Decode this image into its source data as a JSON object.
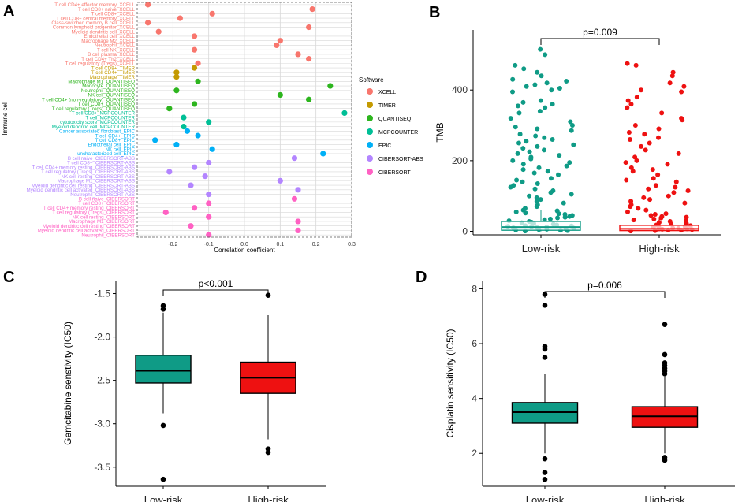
{
  "panels": {
    "A": "A",
    "B": "B",
    "C": "C",
    "D": "D"
  },
  "colors": {
    "teal": "#0f9b86",
    "red": "#ee1111",
    "grid": "#cccccc"
  },
  "chart_data": [
    {
      "panel": "A",
      "type": "scatter",
      "xlabel": "Correlation coefficient",
      "ylabel": "Immune cell",
      "xlim": [
        -0.3,
        0.3
      ],
      "xticks": [
        "-0.2",
        "-0.1",
        "0.0",
        "0.1",
        "0.2",
        "0.3"
      ],
      "legend_title": "Software",
      "legend": [
        {
          "name": "XCELL",
          "color": "#f8766d"
        },
        {
          "name": "TIMER",
          "color": "#c49a00"
        },
        {
          "name": "QUANTISEQ",
          "color": "#2db51e"
        },
        {
          "name": "MCPCOUNTER",
          "color": "#00bf96"
        },
        {
          "name": "EPIC",
          "color": "#00b0f6"
        },
        {
          "name": "CIBERSORT-ABS",
          "color": "#b385ff"
        },
        {
          "name": "CIBERSORT",
          "color": "#ff61c3"
        }
      ],
      "points": [
        {
          "label": "T cell CD4+ effector memory_XCELL",
          "software": "XCELL",
          "value": -0.27
        },
        {
          "label": "T cell CD8+ naive_XCELL",
          "software": "XCELL",
          "value": 0.19
        },
        {
          "label": "T cell CD8+_XCELL",
          "software": "XCELL",
          "value": -0.09
        },
        {
          "label": "T cell CD8+ central memory_XCELL",
          "software": "XCELL",
          "value": -0.18
        },
        {
          "label": "Class-switched memory B cell_XCELL",
          "software": "XCELL",
          "value": -0.27
        },
        {
          "label": "Common lymphoid progenitor_XCELL",
          "software": "XCELL",
          "value": 0.18
        },
        {
          "label": "Myeloid dendritic cell_XCELL",
          "software": "XCELL",
          "value": -0.24
        },
        {
          "label": "Endothelial cell_XCELL",
          "software": "XCELL",
          "value": -0.14
        },
        {
          "label": "Macrophage M2_XCELL",
          "software": "XCELL",
          "value": 0.1
        },
        {
          "label": "Neutrophil_XCELL",
          "software": "XCELL",
          "value": 0.09
        },
        {
          "label": "T cell NK_XCELL",
          "software": "XCELL",
          "value": -0.14
        },
        {
          "label": "B cell plasma_XCELL",
          "software": "XCELL",
          "value": 0.15
        },
        {
          "label": "T cell CD4+ Th2_XCELL",
          "software": "XCELL",
          "value": 0.18
        },
        {
          "label": "T cell regulatory (Tregs)_XCELL",
          "software": "XCELL",
          "value": -0.13
        },
        {
          "label": "T cell CD8+_TIMER",
          "software": "TIMER",
          "value": -0.14
        },
        {
          "label": "T cell CD4+_TIMER",
          "software": "TIMER",
          "value": -0.19
        },
        {
          "label": "Macrophage_TIMER",
          "software": "TIMER",
          "value": -0.19
        },
        {
          "label": "Macrophage M1_QUANTISEQ",
          "software": "QUANTISEQ",
          "value": -0.13
        },
        {
          "label": "Monocyte_QUANTISEQ",
          "software": "QUANTISEQ",
          "value": 0.24
        },
        {
          "label": "Neutrophil_QUANTISEQ",
          "software": "QUANTISEQ",
          "value": -0.19
        },
        {
          "label": "NK cell_QUANTISEQ",
          "software": "QUANTISEQ",
          "value": 0.1
        },
        {
          "label": "T cell CD4+ (non-regulatory)_QUANTISEQ",
          "software": "QUANTISEQ",
          "value": 0.18
        },
        {
          "label": "T cell CD8+_QUANTISEQ",
          "software": "QUANTISEQ",
          "value": -0.14
        },
        {
          "label": "T cell regulatory (Tregs)_QUANTISEQ",
          "software": "QUANTISEQ",
          "value": -0.21
        },
        {
          "label": "T cell CD8+_MCPCOUNTER",
          "software": "MCPCOUNTER",
          "value": 0.28
        },
        {
          "label": "T cell_MCPCOUNTER",
          "software": "MCPCOUNTER",
          "value": -0.17
        },
        {
          "label": "cytotoxicity score_MCPCOUNTER",
          "software": "MCPCOUNTER",
          "value": -0.1
        },
        {
          "label": "Myeloid dendritic cell_MCPCOUNTER",
          "software": "MCPCOUNTER",
          "value": -0.17
        },
        {
          "label": "Cancer associated fibroblast_EPIC",
          "software": "EPIC",
          "value": -0.16
        },
        {
          "label": "T cell CD4+_EPIC",
          "software": "EPIC",
          "value": -0.13
        },
        {
          "label": "T cell CD8+_EPIC",
          "software": "EPIC",
          "value": -0.25
        },
        {
          "label": "Endothelial cell_EPIC",
          "software": "EPIC",
          "value": -0.19
        },
        {
          "label": "NK cell_EPIC",
          "software": "EPIC",
          "value": -0.09
        },
        {
          "label": "uncharacterized cell_EPIC",
          "software": "EPIC",
          "value": 0.22
        },
        {
          "label": "B cell naive_CIBERSORT-ABS",
          "software": "CIBERSORT-ABS",
          "value": 0.14
        },
        {
          "label": "T cell CD8+_CIBERSORT-ABS",
          "software": "CIBERSORT-ABS",
          "value": -0.1
        },
        {
          "label": "T cell CD4+ memory resting_CIBERSORT-ABS",
          "software": "CIBERSORT-ABS",
          "value": -0.14
        },
        {
          "label": "T cell regulatory (Tregs)_CIBERSORT-ABS",
          "software": "CIBERSORT-ABS",
          "value": -0.21
        },
        {
          "label": "NK cell resting_CIBERSORT-ABS",
          "software": "CIBERSORT-ABS",
          "value": -0.11
        },
        {
          "label": "Macrophage M1_CIBERSORT-ABS",
          "software": "CIBERSORT-ABS",
          "value": 0.1
        },
        {
          "label": "Myeloid dendritic cell resting_CIBERSORT-ABS",
          "software": "CIBERSORT-ABS",
          "value": -0.15
        },
        {
          "label": "Myeloid dendritic cell activated_CIBERSORT-ABS",
          "software": "CIBERSORT-ABS",
          "value": 0.15
        },
        {
          "label": "Neutrophil_CIBERSORT-ABS",
          "software": "CIBERSORT-ABS",
          "value": -0.1
        },
        {
          "label": "B cell naive_CIBERSORT",
          "software": "CIBERSORT",
          "value": 0.14
        },
        {
          "label": "T cell CD8+_CIBERSORT",
          "software": "CIBERSORT",
          "value": -0.1
        },
        {
          "label": "T cell CD4+ memory resting_CIBERSORT",
          "software": "CIBERSORT",
          "value": -0.14
        },
        {
          "label": "T cell regulatory (Tregs)_CIBERSORT",
          "software": "CIBERSORT",
          "value": -0.22
        },
        {
          "label": "NK cell resting_CIBERSORT",
          "software": "CIBERSORT",
          "value": -0.1
        },
        {
          "label": "Macrophage M1_CIBERSORT",
          "software": "CIBERSORT",
          "value": 0.15
        },
        {
          "label": "Myeloid dendritic cell resting_CIBERSORT",
          "software": "CIBERSORT",
          "value": -0.15
        },
        {
          "label": "Myeloid dendritic cell activated_CIBERSORT",
          "software": "CIBERSORT",
          "value": 0.15
        },
        {
          "label": "Neutrophil_CIBERSORT",
          "software": "CIBERSORT",
          "value": -0.1
        }
      ]
    },
    {
      "panel": "B",
      "type": "box",
      "ylabel": "TMB",
      "ylim": [
        -10,
        570
      ],
      "yticks": [
        0,
        200,
        400
      ],
      "categories": [
        "Low-risk",
        "High-risk"
      ],
      "pvalue": "p=0.009",
      "boxes": [
        {
          "group": "Low-risk",
          "min": 0,
          "q1": 3,
          "median": 12,
          "q3": 28,
          "max": 60,
          "color": "#0f9b86",
          "fill": "#ffffff"
        },
        {
          "group": "High-risk",
          "min": 0,
          "q1": 2,
          "median": 7,
          "q3": 17,
          "max": 40,
          "color": "#ee1111",
          "fill": "#ffffff"
        }
      ],
      "jitter": {
        "Low-risk": [
          515,
          500,
          470,
          460,
          450,
          440,
          430,
          425,
          420,
          415,
          410,
          405,
          400,
          395,
          370,
          365,
          360,
          355,
          350,
          340,
          335,
          320,
          310,
          300,
          295,
          290,
          285,
          275,
          270,
          265,
          260,
          255,
          250,
          245,
          240,
          235,
          230,
          225,
          220,
          215,
          210,
          205,
          200,
          195,
          190,
          185,
          180,
          175,
          170,
          165,
          160,
          150,
          145,
          140,
          135,
          130,
          125,
          120,
          115,
          110,
          105,
          100,
          95,
          90,
          85,
          80,
          75,
          70,
          65,
          60,
          58,
          55,
          52,
          50,
          48,
          45,
          42,
          40,
          38,
          35,
          33,
          30,
          28,
          26,
          24,
          22,
          20,
          18,
          16,
          15,
          14,
          13,
          12,
          11,
          10,
          9,
          8,
          7,
          6,
          5,
          4,
          3,
          2,
          1
        ],
        "High-risk": [
          475,
          470,
          450,
          440,
          420,
          410,
          400,
          395,
          380,
          370,
          360,
          350,
          335,
          320,
          315,
          300,
          290,
          280,
          275,
          265,
          260,
          250,
          240,
          230,
          220,
          210,
          200,
          195,
          190,
          180,
          175,
          170,
          160,
          150,
          145,
          140,
          130,
          125,
          120,
          115,
          110,
          100,
          95,
          90,
          85,
          80,
          75,
          70,
          65,
          60,
          55,
          50,
          48,
          45,
          42,
          40,
          38,
          35,
          32,
          30,
          28,
          25,
          22,
          20,
          18,
          16,
          14,
          12,
          10,
          9,
          8,
          7,
          6,
          5,
          4,
          3,
          2,
          1
        ]
      }
    },
    {
      "panel": "C",
      "type": "box",
      "ylabel": "Gemcitabine senstivity (IC50)",
      "ylim": [
        -3.72,
        -1.35
      ],
      "yticks": [
        -3.5,
        -3.0,
        -2.5,
        -2.0,
        -1.5
      ],
      "yticklabels": [
        "-3.5",
        "-3.0",
        "-2.5",
        "-2.0",
        "-1.5"
      ],
      "categories": [
        "Low-risk",
        "High-risk"
      ],
      "pvalue": "p<0.001",
      "boxes": [
        {
          "group": "Low-risk",
          "min": -2.88,
          "q1": -2.53,
          "median": -2.39,
          "q3": -2.21,
          "max": -1.72,
          "color": "#000000",
          "fill": "#0f9b86"
        },
        {
          "group": "High-risk",
          "min": -3.18,
          "q1": -2.65,
          "median": -2.47,
          "q3": -2.29,
          "max": -1.75,
          "color": "#000000",
          "fill": "#ee1111"
        }
      ],
      "outliers": {
        "Low-risk": [
          -1.64,
          -1.68,
          -3.02,
          -3.64
        ],
        "High-risk": [
          -1.52,
          -3.29,
          -3.33
        ]
      }
    },
    {
      "panel": "D",
      "type": "box",
      "ylabel": "Cisplatin sensitivity (IC50)",
      "ylim": [
        0.8,
        8.3
      ],
      "yticks": [
        2,
        4,
        6,
        8
      ],
      "yticklabels": [
        "2",
        "4",
        "6",
        "8"
      ],
      "categories": [
        "Low-risk",
        "High-risk"
      ],
      "pvalue": "p=0.006",
      "boxes": [
        {
          "group": "Low-risk",
          "min": 2.0,
          "q1": 3.1,
          "median": 3.5,
          "q3": 3.85,
          "max": 4.9,
          "color": "#000000",
          "fill": "#0f9b86"
        },
        {
          "group": "High-risk",
          "min": 2.0,
          "q1": 2.95,
          "median": 3.35,
          "q3": 3.7,
          "max": 4.8,
          "color": "#000000",
          "fill": "#ee1111"
        }
      ],
      "outliers": {
        "Low-risk": [
          7.8,
          7.4,
          5.9,
          5.8,
          5.5,
          1.8,
          1.3,
          1.05
        ],
        "High-risk": [
          6.7,
          5.6,
          5.3,
          5.2,
          5.1,
          5.0,
          4.9,
          1.85,
          1.75
        ]
      }
    }
  ]
}
